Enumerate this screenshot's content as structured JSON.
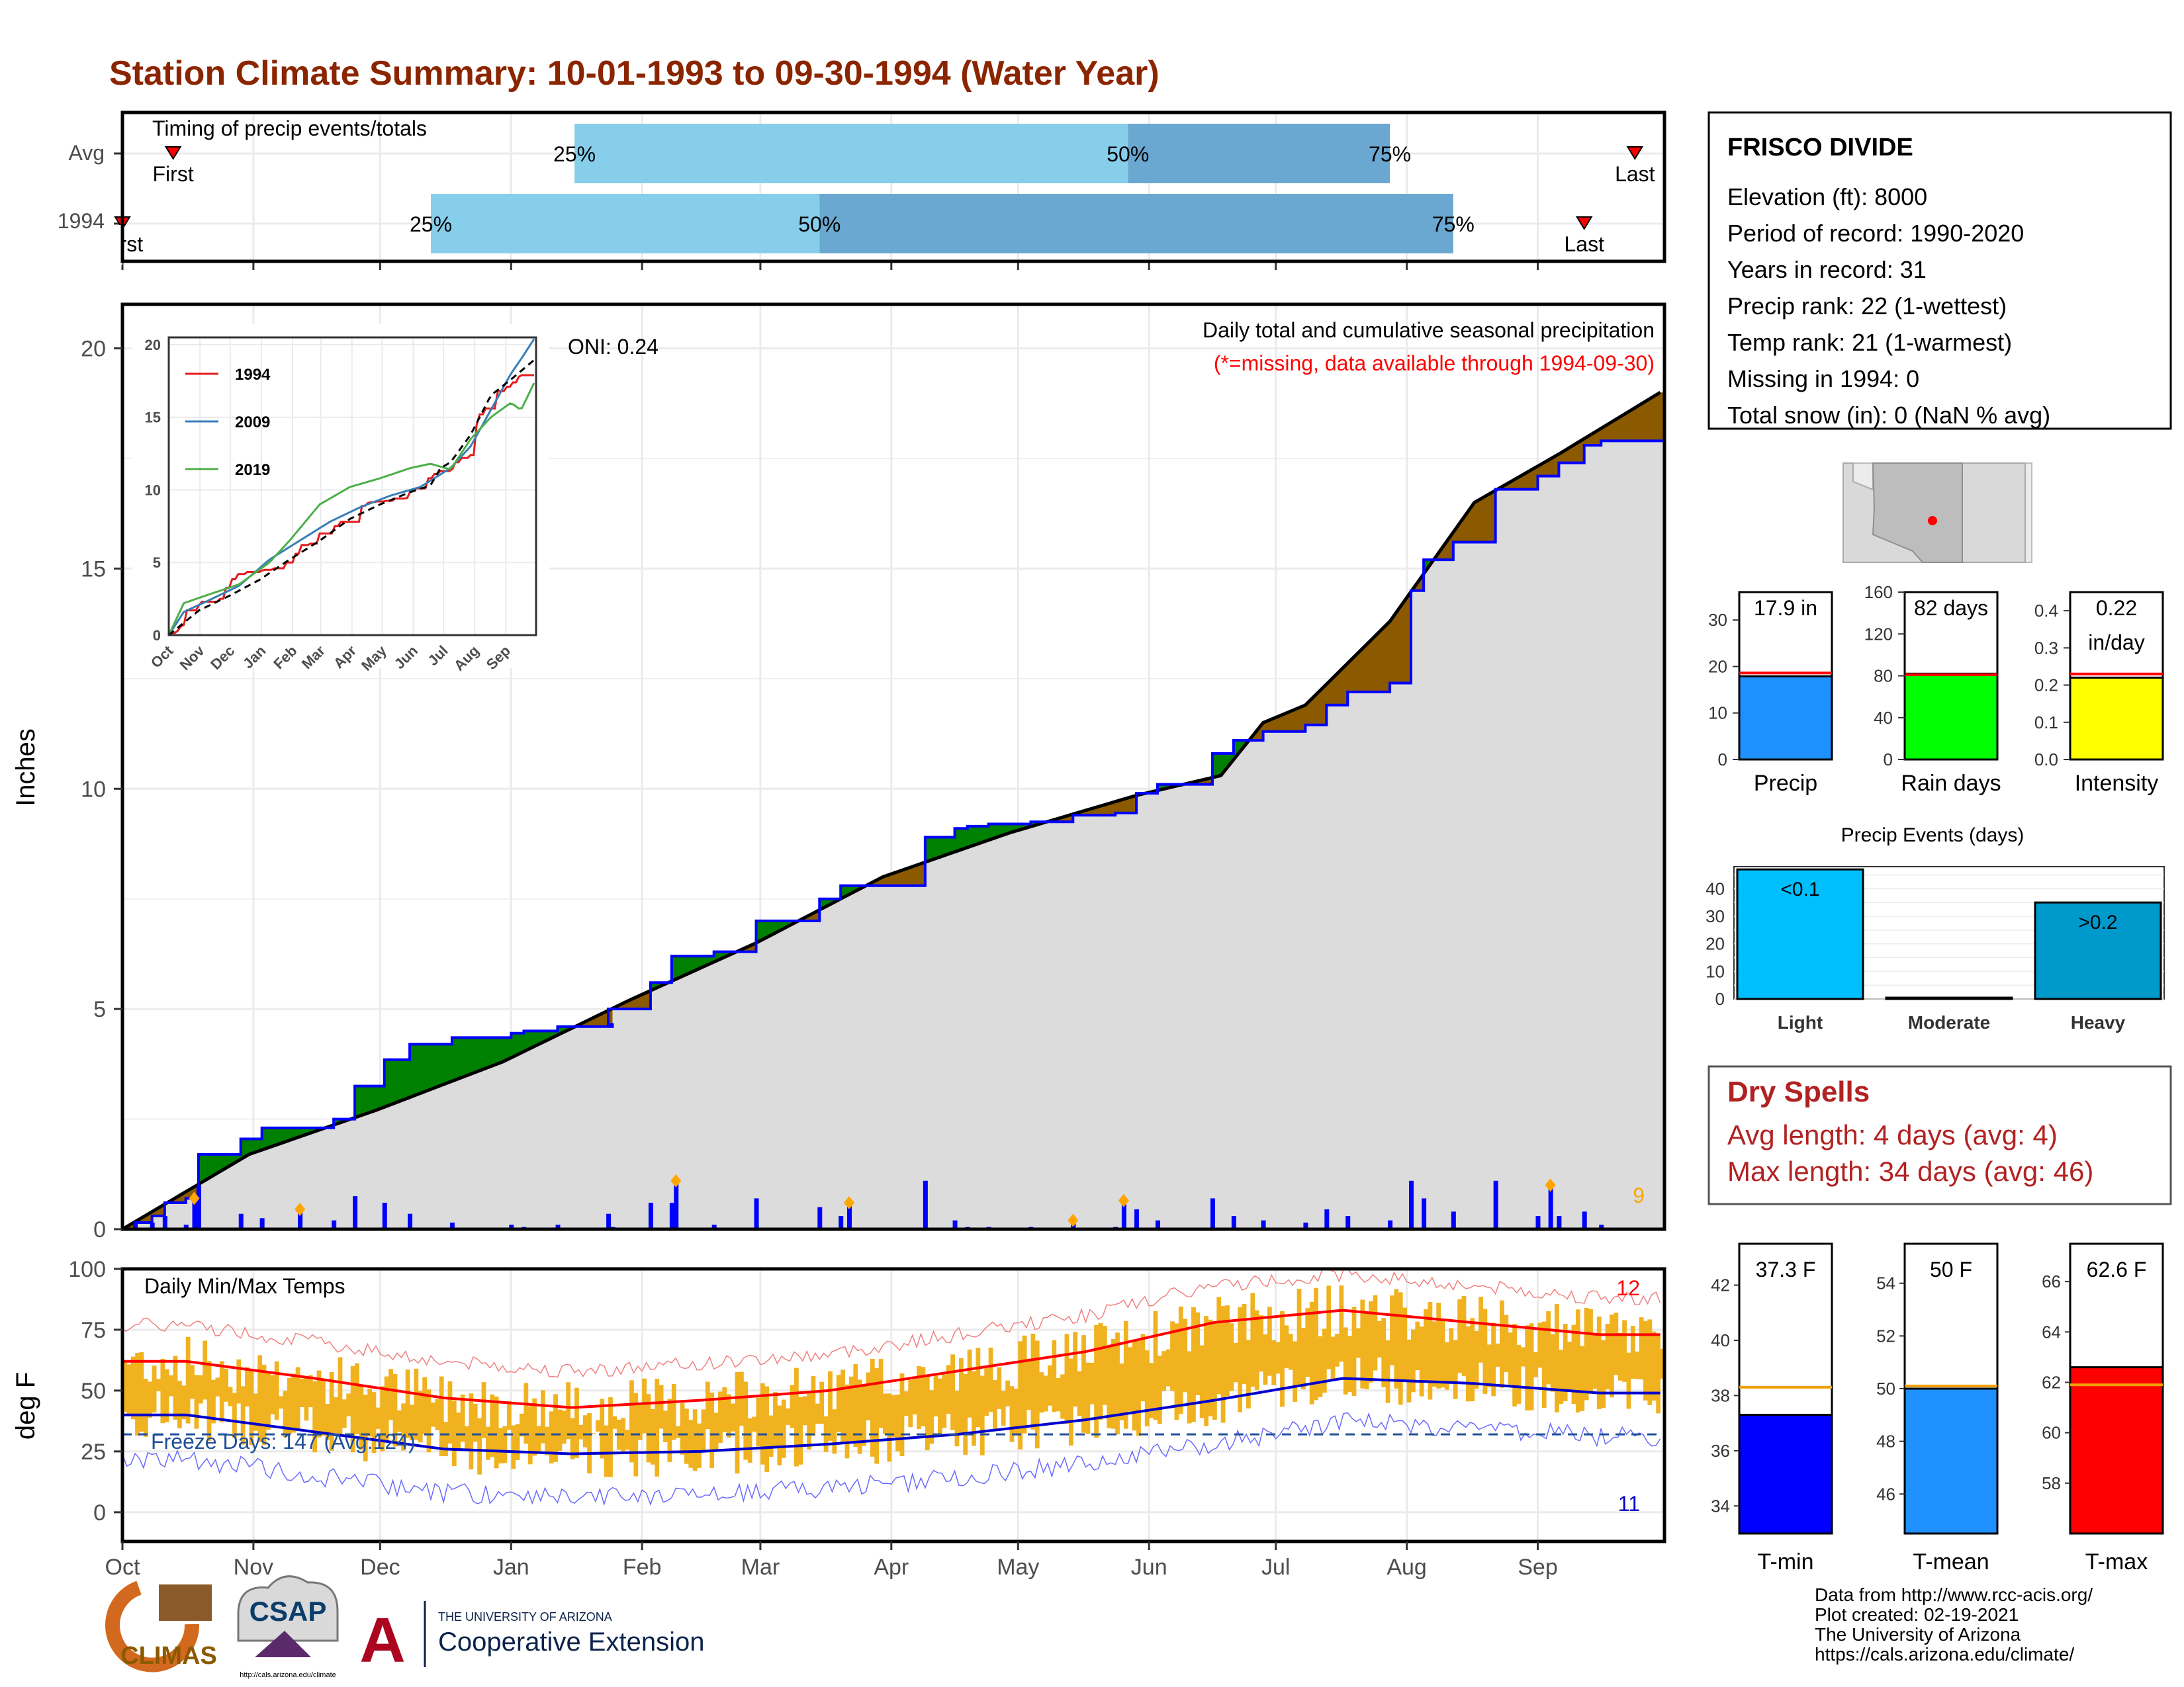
{
  "page_title": "Station Climate Summary: 10-01-1993 to 09-30-1994 (Water Year)",
  "colors": {
    "title": "#8b2500",
    "precip_fill": "#dcdcdc",
    "above_avg": "#008000",
    "below_avg": "#8b5a00",
    "daily_bar": "#0000ff",
    "quartile_light": "#87ceeb",
    "quartile_dark": "#6aa7d1",
    "temp_bar": "#f0b21f",
    "tmax_line": "#ff0000",
    "tmin_line": "#0000cd",
    "dry_spells": "#b22222"
  },
  "timing": {
    "title": "Timing of precip events/totals",
    "rows": [
      {
        "label": "Avg",
        "first": "First",
        "last": "Last",
        "q25": "25%",
        "q50": "50%",
        "q75": "75%",
        "first_day": 12,
        "q25_day": 107,
        "q50_day": 238,
        "q75_day": 300,
        "last_day": 358
      },
      {
        "label": "1994",
        "first": "First",
        "last": "Last",
        "q25": "25%",
        "q50": "50%",
        "q75": "75%",
        "first_day": 0,
        "q25_day": 73,
        "q50_day": 165,
        "q75_day": 315,
        "last_day": 346
      }
    ]
  },
  "precip_chart": {
    "y_label": "Inches",
    "y_ticks": [
      "0",
      "5",
      "10",
      "15",
      "20"
    ],
    "oni": "ONI: 0.24",
    "subtitle": "Daily total and cumulative seasonal precipitation",
    "note": "(*=missing, data available through 1994-09-30)",
    "count_label": "9"
  },
  "inset": {
    "series": [
      {
        "name": "1994",
        "color": "#e41a1c"
      },
      {
        "name": "2009",
        "color": "#377eb8"
      },
      {
        "name": "2019",
        "color": "#4daf4a"
      }
    ],
    "y_ticks": [
      "0",
      "5",
      "10",
      "15",
      "20"
    ],
    "x_ticks": [
      "Oct",
      "Nov",
      "Dec",
      "Jan",
      "Feb",
      "Mar",
      "Apr",
      "May",
      "Jun",
      "Jul",
      "Aug",
      "Sep"
    ]
  },
  "temp_chart": {
    "y_label": "deg F",
    "title": "Daily Min/Max Temps",
    "freeze_text": "Freeze Days: 147 (Avg:124)",
    "y_ticks": [
      "0",
      "25",
      "50",
      "75",
      "100"
    ],
    "record_high_count": "12",
    "record_low_count": "11"
  },
  "x_months": [
    "Oct",
    "Nov",
    "Dec",
    "Jan",
    "Feb",
    "Mar",
    "Apr",
    "May",
    "Jun",
    "Jul",
    "Aug",
    "Sep"
  ],
  "station": {
    "name": "FRISCO DIVIDE",
    "lines": [
      "Elevation (ft): 8000",
      "Period of record: 1990-2020",
      "Years in record: 31",
      "Precip rank: 22 (1-wettest)",
      "Temp rank: 21 (1-warmest)",
      "Missing in 1994: 0",
      "Total snow (in): 0 (NaN % avg)"
    ]
  },
  "mini_bars": [
    {
      "label": "Precip",
      "value_text": "17.9 in",
      "value": 17.9,
      "avg": 18.6,
      "ticks": [
        "0",
        "10",
        "20",
        "30"
      ],
      "max": 36,
      "color": "#1e90ff"
    },
    {
      "label": "Rain days",
      "value_text": "82 days",
      "value": 82,
      "avg": 81,
      "ticks": [
        "0",
        "40",
        "80",
        "120",
        "160"
      ],
      "max": 160,
      "color": "#00ff00"
    },
    {
      "label": "Intensity",
      "value_text": "0.22\nin/day",
      "value": 0.22,
      "avg": 0.23,
      "ticks": [
        "0.0",
        "0.1",
        "0.2",
        "0.3",
        "0.4"
      ],
      "max": 0.45,
      "color": "#ffff00"
    }
  ],
  "precip_events": {
    "title": "Precip Events (days)",
    "categories": [
      "Light",
      "Moderate",
      "Heavy"
    ],
    "values": [
      47,
      0,
      35
    ],
    "bar_labels": [
      "<0.1",
      "",
      ">0.2"
    ],
    "ticks": [
      "0",
      "10",
      "20",
      "30",
      "40"
    ]
  },
  "dry_spells": {
    "title": "Dry Spells",
    "avg_line": "Avg length: 4 days (avg: 4)",
    "max_line": "Max length: 34 days (avg: 46)"
  },
  "temp_bars": [
    {
      "label": "T-min",
      "value_text": "37.3 F",
      "value": 37.3,
      "avg": 38.3,
      "ticks": [
        "34",
        "36",
        "38",
        "40",
        "42"
      ],
      "min": 33,
      "max": 43.5,
      "color": "#0000ff"
    },
    {
      "label": "T-mean",
      "value_text": "50 F",
      "value": 50.0,
      "avg": 50.1,
      "ticks": [
        "46",
        "48",
        "50",
        "52",
        "54"
      ],
      "min": 44.5,
      "max": 55.5,
      "color": "#1e90ff"
    },
    {
      "label": "T-max",
      "value_text": "62.6 F",
      "value": 62.6,
      "avg": 61.9,
      "ticks": [
        "58",
        "60",
        "62",
        "64",
        "66"
      ],
      "min": 56,
      "max": 67.5,
      "color": "#ff0000"
    }
  ],
  "footer": {
    "source_lines": [
      "Data from http://www.rcc-acis.org/",
      "Plot created: 02-19-2021",
      "The University of Arizona",
      "https://cals.arizona.edu/climate/"
    ],
    "logo_climas": "CLIMAS",
    "logo_csap": "CSAP",
    "logo_csap_url": "http://cals.arizona.edu/climate",
    "logo_ua_small": "THE UNIVERSITY OF ARIZONA",
    "logo_ua_big": "Cooperative Extension",
    "logo_ua_letter": "A"
  },
  "chart_data": {
    "type": "area",
    "title": "Station Climate Summary: 10-01-1993 to 09-30-1994 (Water Year)",
    "xlabel": "",
    "ylabel": "Inches",
    "ylim": [
      0,
      21
    ],
    "x_range": [
      "1993-10-01",
      "1994-09-30"
    ],
    "series": [
      {
        "name": "1994",
        "x_days": [
          0,
          3,
          7,
          10,
          15,
          18,
          28,
          33,
          50,
          55,
          62,
          68,
          78,
          92,
          95,
          103,
          116,
          115,
          125,
          130,
          140,
          150,
          165,
          170,
          190,
          197,
          200,
          205,
          215,
          225,
          235,
          240,
          245,
          258,
          263,
          270,
          280,
          285,
          290,
          300,
          305,
          308,
          315,
          325,
          335,
          340,
          346,
          350,
          364
        ],
        "values": [
          0,
          0.15,
          0.3,
          0.6,
          0.7,
          1.7,
          2.05,
          2.3,
          2.5,
          3.25,
          3.85,
          4.2,
          4.35,
          4.45,
          4.5,
          4.6,
          4.65,
          5.0,
          5.6,
          6.2,
          6.3,
          7.0,
          7.5,
          7.8,
          8.9,
          9.1,
          9.15,
          9.2,
          9.25,
          9.4,
          9.45,
          9.9,
          10.1,
          10.8,
          11.1,
          11.3,
          11.45,
          11.9,
          12.2,
          12.4,
          14.5,
          15.2,
          15.6,
          16.8,
          17.1,
          17.4,
          17.8,
          17.9,
          17.9
        ]
      },
      {
        "name": "Average",
        "x_days": [
          0,
          30,
          60,
          90,
          120,
          150,
          180,
          210,
          240,
          260,
          270,
          280,
          300,
          320,
          340,
          364
        ],
        "values": [
          0,
          1.7,
          2.7,
          3.8,
          5.2,
          6.5,
          8.0,
          9.0,
          9.85,
          10.3,
          11.5,
          11.9,
          13.8,
          16.5,
          17.6,
          19.0
        ]
      }
    ],
    "daily_total_peaks": [
      {
        "x_day": 17,
        "value": 0.7
      },
      {
        "x_day": 42,
        "value": 0.45
      },
      {
        "x_day": 131,
        "value": 1.1
      },
      {
        "x_day": 172,
        "value": 0.6
      },
      {
        "x_day": 225,
        "value": 0.2
      },
      {
        "x_day": 237,
        "value": 0.65
      },
      {
        "x_day": 338,
        "value": 1.0
      }
    ],
    "temperature": {
      "ylim": [
        -12,
        100
      ],
      "freeze_threshold": 32,
      "avg_tmax_monthly": [
        62,
        55,
        47,
        43,
        46,
        50,
        58,
        66,
        78,
        83,
        78,
        73
      ],
      "avg_tmin_monthly": [
        40,
        33,
        26,
        24,
        25,
        28,
        32,
        38,
        46,
        55,
        53,
        49
      ]
    }
  }
}
